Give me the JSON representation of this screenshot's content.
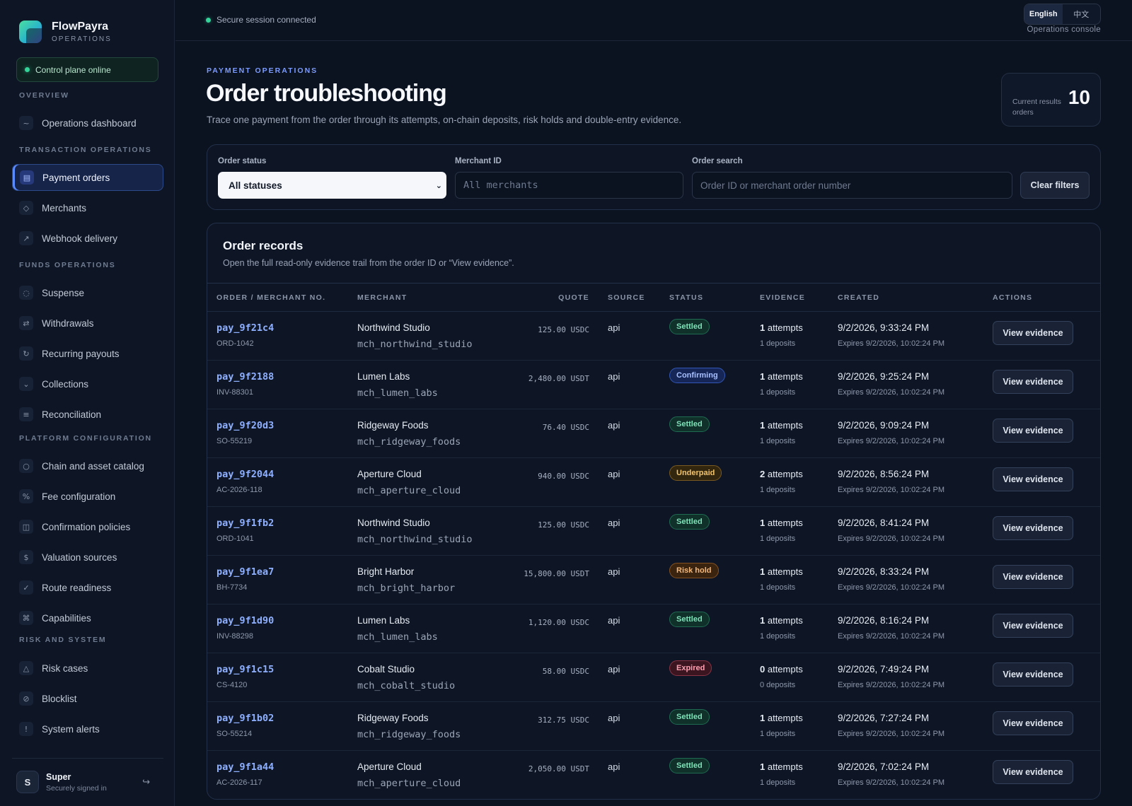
{
  "brand": {
    "name": "FlowPayra",
    "subtitle": "OPERATIONS"
  },
  "control_plane": "Control plane online",
  "nav": {
    "sections": [
      {
        "title": "OVERVIEW",
        "items": [
          {
            "label": "Operations dashboard",
            "icon": "~"
          }
        ]
      },
      {
        "title": "TRANSACTION OPERATIONS",
        "items": [
          {
            "label": "Payment orders",
            "icon": "▤",
            "active": true
          },
          {
            "label": "Merchants",
            "icon": "◇"
          },
          {
            "label": "Webhook delivery",
            "icon": "↗"
          }
        ]
      },
      {
        "title": "FUNDS OPERATIONS",
        "items": [
          {
            "label": "Suspense",
            "icon": "◌"
          },
          {
            "label": "Withdrawals",
            "icon": "⇄"
          },
          {
            "label": "Recurring payouts",
            "icon": "↻"
          },
          {
            "label": "Collections",
            "icon": "⌄"
          },
          {
            "label": "Reconciliation",
            "icon": "≡"
          }
        ]
      },
      {
        "title": "PLATFORM CONFIGURATION",
        "items": [
          {
            "label": "Chain and asset catalog",
            "icon": "○"
          },
          {
            "label": "Fee configuration",
            "icon": "%"
          },
          {
            "label": "Confirmation policies",
            "icon": "◫"
          },
          {
            "label": "Valuation sources",
            "icon": "$"
          },
          {
            "label": "Route readiness",
            "icon": "✓"
          },
          {
            "label": "Capabilities",
            "icon": "⌘"
          }
        ]
      },
      {
        "title": "RISK AND SYSTEM",
        "items": [
          {
            "label": "Risk cases",
            "icon": "△"
          },
          {
            "label": "Blocklist",
            "icon": "⊘"
          },
          {
            "label": "System alerts",
            "icon": "!"
          }
        ]
      }
    ]
  },
  "user": {
    "initial": "S",
    "name": "Super",
    "status": "Securely signed in"
  },
  "topbar": {
    "session": "Secure session connected",
    "lang_en": "English",
    "lang_zh": "中文",
    "console": "Operations console"
  },
  "header": {
    "eyebrow": "PAYMENT OPERATIONS",
    "title": "Order troubleshooting",
    "description": "Trace one payment from the order through its attempts, on-chain deposits, risk holds and double-entry evidence.",
    "results_label": "Current results orders",
    "results_count": "10"
  },
  "filters": {
    "status_label": "Order status",
    "status_value": "All statuses",
    "merchant_label": "Merchant ID",
    "merchant_placeholder": "All merchants",
    "search_label": "Order search",
    "search_placeholder": "Order ID or merchant order number",
    "clear": "Clear filters"
  },
  "records": {
    "title": "Order records",
    "description": "Open the full read-only evidence trail from the order ID or “View evidence”.",
    "columns": [
      "ORDER / MERCHANT NO.",
      "MERCHANT",
      "QUOTE",
      "SOURCE",
      "STATUS",
      "EVIDENCE",
      "CREATED",
      "ACTIONS"
    ],
    "action_label": "View evidence",
    "rows": [
      {
        "id": "pay_9f21c4",
        "no": "ORD-1042",
        "merchant": "Northwind Studio",
        "merchant_id": "mch_northwind_studio",
        "quote": "125.00 USDC",
        "source": "api",
        "status": "Settled",
        "status_kind": "settled",
        "attempts": "1",
        "deposits": "1 deposits",
        "created": "9/2/2026, 9:33:24 PM",
        "expires": "Expires 9/2/2026, 10:02:24 PM"
      },
      {
        "id": "pay_9f2188",
        "no": "INV-88301",
        "merchant": "Lumen Labs",
        "merchant_id": "mch_lumen_labs",
        "quote": "2,480.00 USDT",
        "source": "api",
        "status": "Confirming",
        "status_kind": "confirming",
        "attempts": "1",
        "deposits": "1 deposits",
        "created": "9/2/2026, 9:25:24 PM",
        "expires": "Expires 9/2/2026, 10:02:24 PM"
      },
      {
        "id": "pay_9f20d3",
        "no": "SO-55219",
        "merchant": "Ridgeway Foods",
        "merchant_id": "mch_ridgeway_foods",
        "quote": "76.40 USDC",
        "source": "api",
        "status": "Settled",
        "status_kind": "settled",
        "attempts": "1",
        "deposits": "1 deposits",
        "created": "9/2/2026, 9:09:24 PM",
        "expires": "Expires 9/2/2026, 10:02:24 PM"
      },
      {
        "id": "pay_9f2044",
        "no": "AC-2026-118",
        "merchant": "Aperture Cloud",
        "merchant_id": "mch_aperture_cloud",
        "quote": "940.00 USDC",
        "source": "api",
        "status": "Underpaid",
        "status_kind": "underpaid",
        "attempts": "2",
        "deposits": "1 deposits",
        "created": "9/2/2026, 8:56:24 PM",
        "expires": "Expires 9/2/2026, 10:02:24 PM"
      },
      {
        "id": "pay_9f1fb2",
        "no": "ORD-1041",
        "merchant": "Northwind Studio",
        "merchant_id": "mch_northwind_studio",
        "quote": "125.00 USDC",
        "source": "api",
        "status": "Settled",
        "status_kind": "settled",
        "attempts": "1",
        "deposits": "1 deposits",
        "created": "9/2/2026, 8:41:24 PM",
        "expires": "Expires 9/2/2026, 10:02:24 PM"
      },
      {
        "id": "pay_9f1ea7",
        "no": "BH-7734",
        "merchant": "Bright Harbor",
        "merchant_id": "mch_bright_harbor",
        "quote": "15,800.00 USDT",
        "source": "api",
        "status": "Risk hold",
        "status_kind": "risk",
        "attempts": "1",
        "deposits": "1 deposits",
        "created": "9/2/2026, 8:33:24 PM",
        "expires": "Expires 9/2/2026, 10:02:24 PM"
      },
      {
        "id": "pay_9f1d90",
        "no": "INV-88298",
        "merchant": "Lumen Labs",
        "merchant_id": "mch_lumen_labs",
        "quote": "1,120.00 USDC",
        "source": "api",
        "status": "Settled",
        "status_kind": "settled",
        "attempts": "1",
        "deposits": "1 deposits",
        "created": "9/2/2026, 8:16:24 PM",
        "expires": "Expires 9/2/2026, 10:02:24 PM"
      },
      {
        "id": "pay_9f1c15",
        "no": "CS-4120",
        "merchant": "Cobalt Studio",
        "merchant_id": "mch_cobalt_studio",
        "quote": "58.00 USDC",
        "source": "api",
        "status": "Expired",
        "status_kind": "expired",
        "attempts": "0",
        "deposits": "0 deposits",
        "created": "9/2/2026, 7:49:24 PM",
        "expires": "Expires 9/2/2026, 10:02:24 PM"
      },
      {
        "id": "pay_9f1b02",
        "no": "SO-55214",
        "merchant": "Ridgeway Foods",
        "merchant_id": "mch_ridgeway_foods",
        "quote": "312.75 USDC",
        "source": "api",
        "status": "Settled",
        "status_kind": "settled",
        "attempts": "1",
        "deposits": "1 deposits",
        "created": "9/2/2026, 7:27:24 PM",
        "expires": "Expires 9/2/2026, 10:02:24 PM"
      },
      {
        "id": "pay_9f1a44",
        "no": "AC-2026-117",
        "merchant": "Aperture Cloud",
        "merchant_id": "mch_aperture_cloud",
        "quote": "2,050.00 USDT",
        "source": "api",
        "status": "Settled",
        "status_kind": "settled",
        "attempts": "1",
        "deposits": "1 deposits",
        "created": "9/2/2026, 7:02:24 PM",
        "expires": "Expires 9/2/2026, 10:02:24 PM"
      }
    ]
  }
}
